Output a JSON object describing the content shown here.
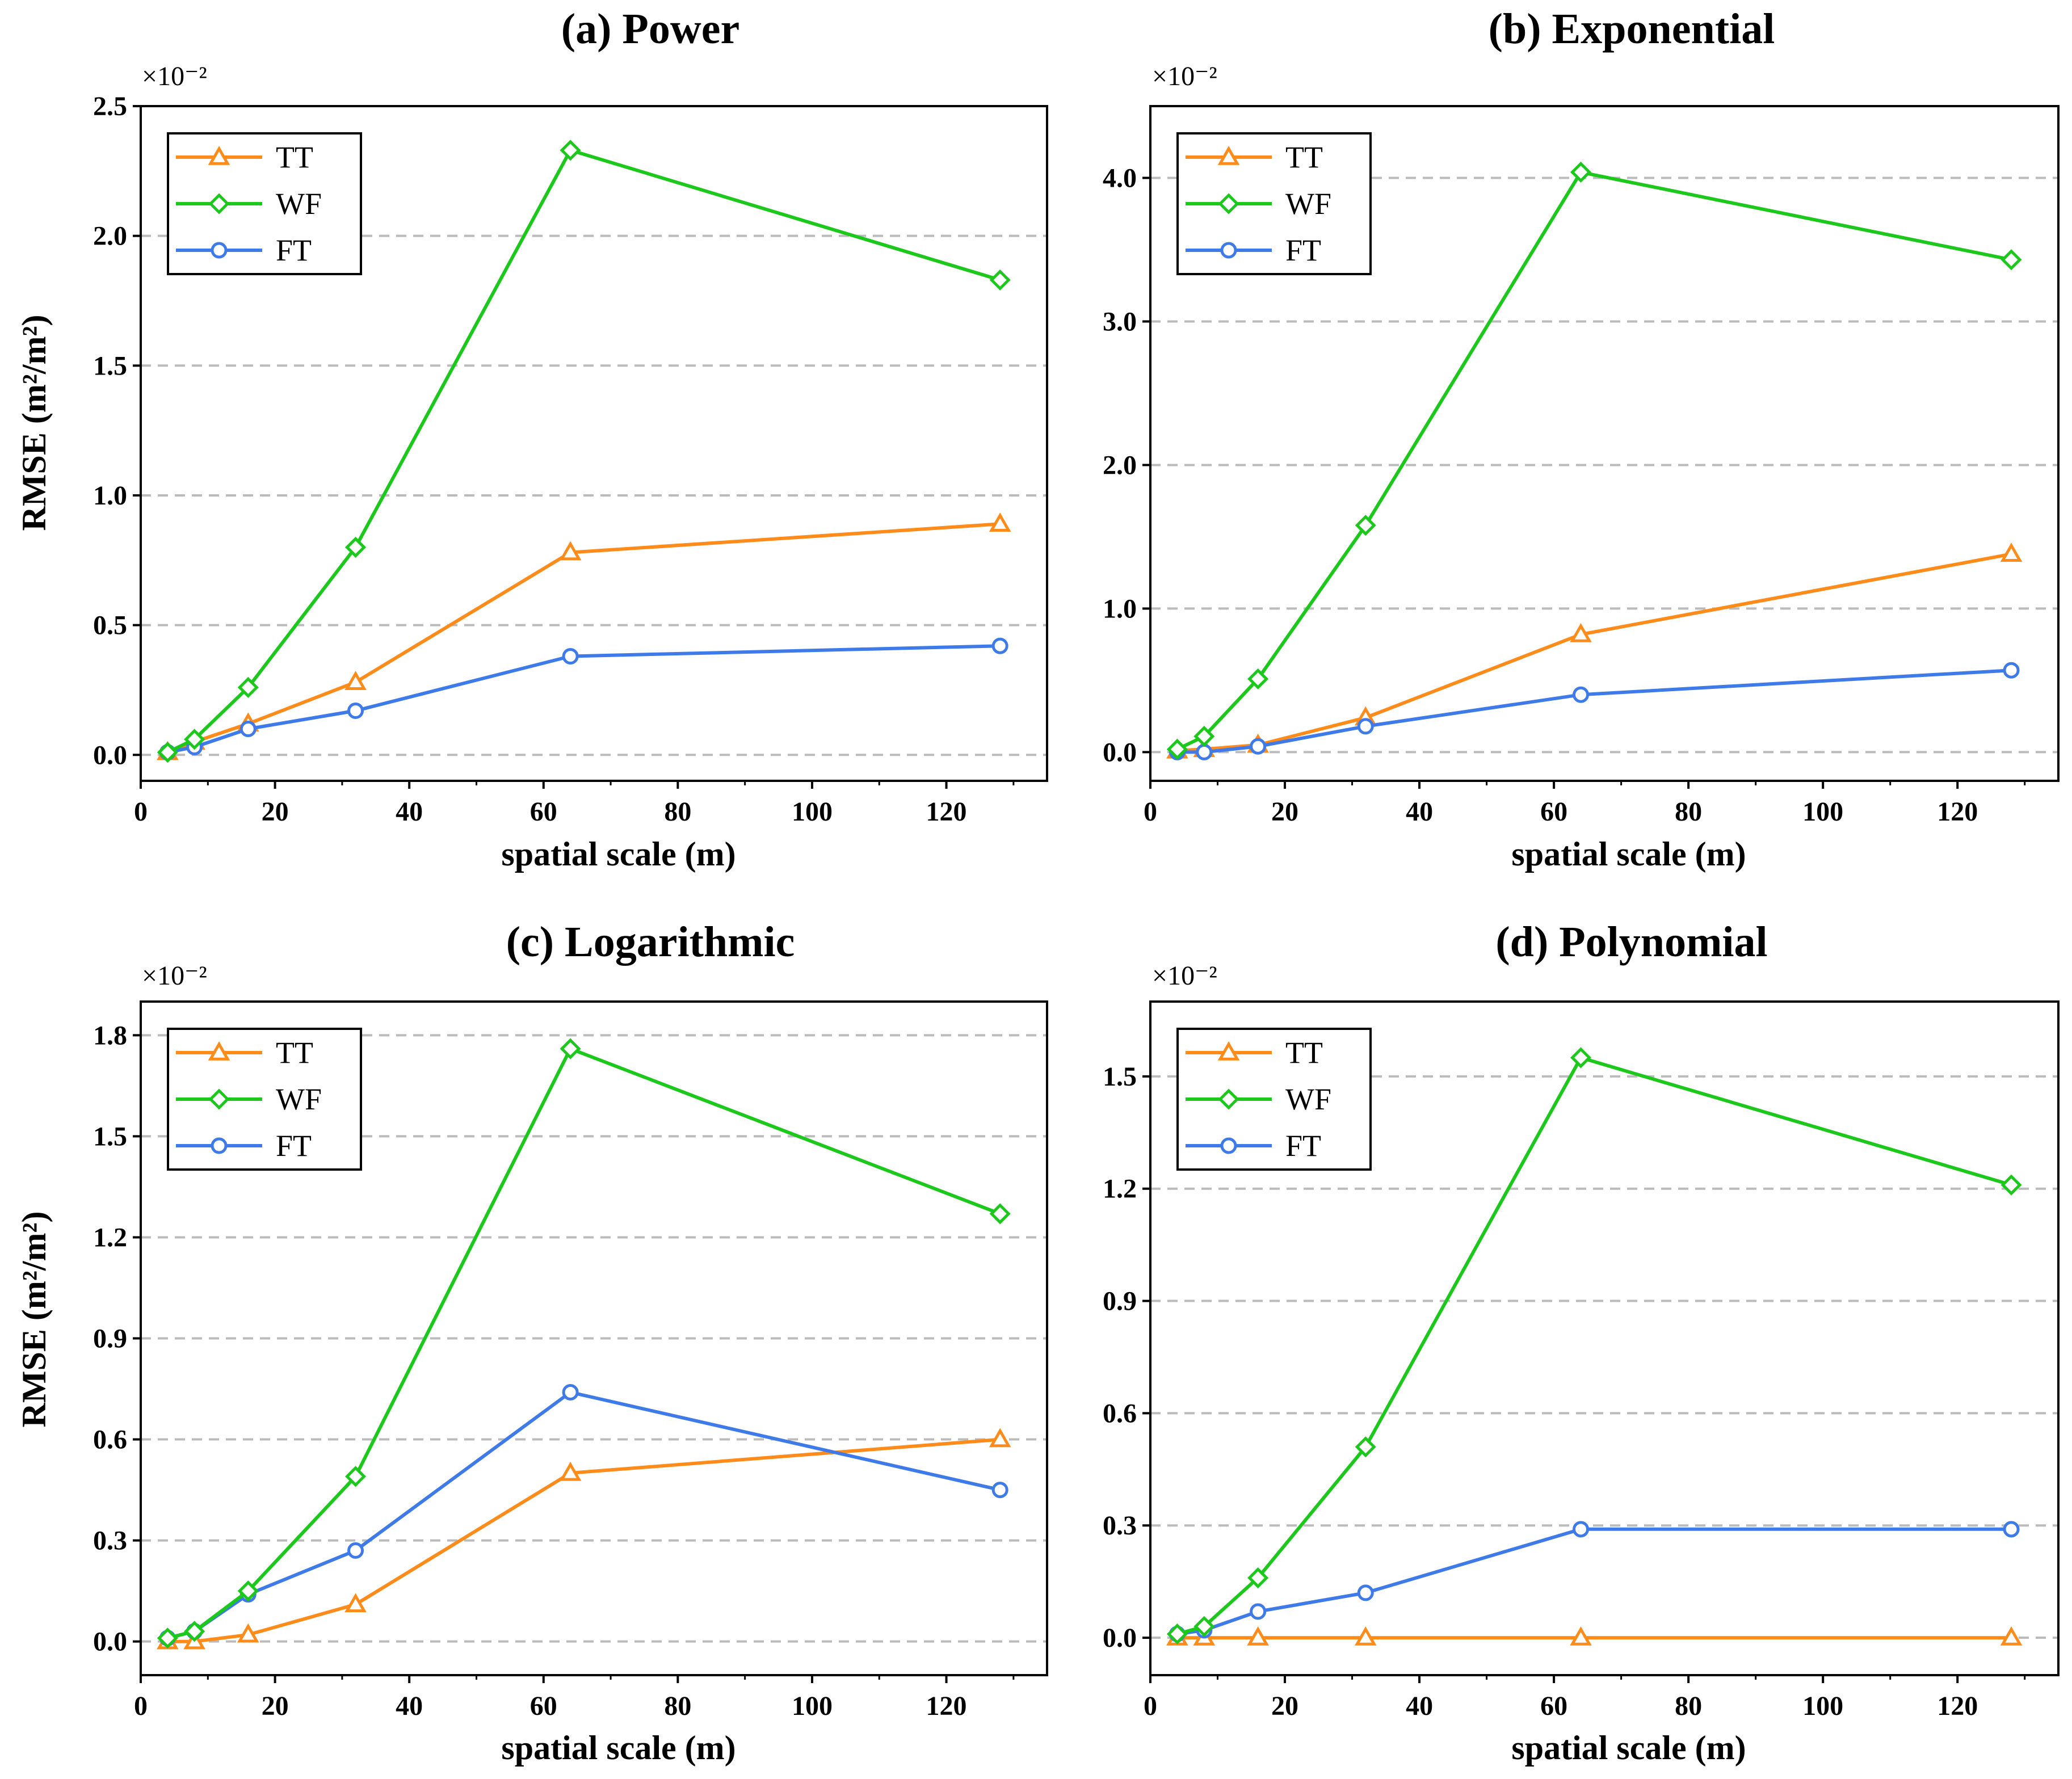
{
  "colors": {
    "TT": "#FF8C1A",
    "WF": "#1CC81C",
    "FT": "#3F7BE8",
    "grid": "#BBBBBB",
    "frame": "#000000"
  },
  "chart_data": [
    {
      "type": "line",
      "title": "(a) Power",
      "xlabel": "spatial scale (m)",
      "ylabel": "RMSE (m²/m²)",
      "scale_label": "×10⁻²",
      "xlim": [
        0,
        135
      ],
      "ylim": [
        -0.1,
        2.5
      ],
      "xticks": [
        0,
        20,
        40,
        60,
        80,
        100,
        120
      ],
      "yticks": [
        0.0,
        0.5,
        1.0,
        1.5,
        2.0,
        2.5
      ],
      "ytick_labels": [
        "0.0",
        "0.5",
        "1.0",
        "1.5",
        "2.0",
        "2.5"
      ],
      "grid": "horizontal dashed",
      "legend": "top-left",
      "x": [
        4,
        8,
        16,
        32,
        64,
        128
      ],
      "series": [
        {
          "name": "TT",
          "marker": "triangle",
          "values": [
            0.01,
            0.05,
            0.12,
            0.28,
            0.78,
            0.89
          ]
        },
        {
          "name": "WF",
          "marker": "diamond",
          "values": [
            0.01,
            0.06,
            0.26,
            0.8,
            2.33,
            1.83
          ]
        },
        {
          "name": "FT",
          "marker": "circle",
          "values": [
            0.01,
            0.03,
            0.1,
            0.17,
            0.38,
            0.42
          ]
        }
      ]
    },
    {
      "type": "line",
      "title": "(b) Exponential",
      "xlabel": "spatial scale (m)",
      "ylabel": "",
      "scale_label": "×10⁻²",
      "xlim": [
        0,
        135
      ],
      "ylim": [
        -0.2,
        4.5
      ],
      "xticks": [
        0,
        20,
        40,
        60,
        80,
        100,
        120
      ],
      "yticks": [
        0.0,
        1.0,
        2.0,
        3.0,
        4.0
      ],
      "ytick_labels": [
        "0.0",
        "1.0",
        "2.0",
        "3.0",
        "4.0"
      ],
      "grid": "horizontal dashed",
      "legend": "top-left",
      "x": [
        4,
        8,
        16,
        32,
        64,
        128
      ],
      "series": [
        {
          "name": "TT",
          "marker": "triangle",
          "values": [
            0.01,
            0.02,
            0.05,
            0.24,
            0.82,
            1.38
          ]
        },
        {
          "name": "WF",
          "marker": "diamond",
          "values": [
            0.02,
            0.11,
            0.51,
            1.58,
            4.04,
            3.43
          ]
        },
        {
          "name": "FT",
          "marker": "circle",
          "values": [
            0.0,
            0.0,
            0.04,
            0.18,
            0.4,
            0.57
          ]
        }
      ]
    },
    {
      "type": "line",
      "title": "(c) Logarithmic",
      "xlabel": "spatial scale (m)",
      "ylabel": "RMSE (m²/m²)",
      "scale_label": "×10⁻²",
      "xlim": [
        0,
        135
      ],
      "ylim": [
        -0.1,
        1.9
      ],
      "xticks": [
        0,
        20,
        40,
        60,
        80,
        100,
        120
      ],
      "yticks": [
        0.0,
        0.3,
        0.6,
        0.9,
        1.2,
        1.5,
        1.8
      ],
      "ytick_labels": [
        "0.0",
        "0.3",
        "0.6",
        "0.9",
        "1.2",
        "1.5",
        "1.8"
      ],
      "grid": "horizontal dashed",
      "legend": "top-left",
      "x": [
        4,
        8,
        16,
        32,
        64,
        128
      ],
      "series": [
        {
          "name": "TT",
          "marker": "triangle",
          "values": [
            0.0,
            0.0,
            0.02,
            0.11,
            0.5,
            0.6
          ]
        },
        {
          "name": "WF",
          "marker": "diamond",
          "values": [
            0.01,
            0.03,
            0.15,
            0.49,
            1.76,
            1.27
          ]
        },
        {
          "name": "FT",
          "marker": "circle",
          "values": [
            0.01,
            0.03,
            0.14,
            0.27,
            0.74,
            0.45
          ]
        }
      ]
    },
    {
      "type": "line",
      "title": "(d) Polynomial",
      "xlabel": "spatial scale (m)",
      "ylabel": "",
      "scale_label": "×10⁻²",
      "xlim": [
        0,
        135
      ],
      "ylim": [
        -0.1,
        1.7
      ],
      "xticks": [
        0,
        20,
        40,
        60,
        80,
        100,
        120
      ],
      "yticks": [
        0.0,
        0.3,
        0.6,
        0.9,
        1.2,
        1.5
      ],
      "ytick_labels": [
        "0.0",
        "0.3",
        "0.6",
        "0.9",
        "1.2",
        "1.5"
      ],
      "grid": "horizontal dashed",
      "legend": "top-left",
      "x": [
        4,
        8,
        16,
        32,
        64,
        128
      ],
      "series": [
        {
          "name": "TT",
          "marker": "triangle",
          "values": [
            0.0,
            0.0,
            0.0,
            0.0,
            0.0,
            0.0
          ]
        },
        {
          "name": "WF",
          "marker": "diamond",
          "values": [
            0.01,
            0.03,
            0.16,
            0.51,
            1.55,
            1.21
          ]
        },
        {
          "name": "FT",
          "marker": "circle",
          "values": [
            0.01,
            0.02,
            0.07,
            0.12,
            0.29,
            0.29
          ]
        }
      ]
    }
  ]
}
